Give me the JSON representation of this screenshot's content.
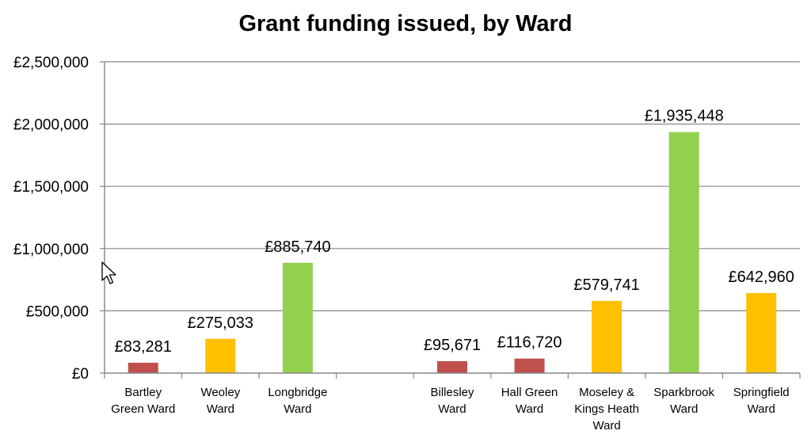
{
  "chart_data": {
    "type": "bar",
    "title": "Grant funding issued, by Ward",
    "categories": [
      [
        "Bartley",
        "Green Ward"
      ],
      [
        "Weoley",
        "Ward"
      ],
      [
        "Longbridge",
        "Ward"
      ],
      [],
      [
        "Billesley",
        "Ward"
      ],
      [
        "Hall Green",
        "Ward"
      ],
      [
        "Moseley &",
        "Kings Heath",
        "Ward"
      ],
      [
        "Sparkbrook",
        "Ward"
      ],
      [
        "Springfield",
        "Ward"
      ]
    ],
    "values": [
      83281,
      275033,
      885740,
      null,
      95671,
      116720,
      579741,
      1935448,
      642960
    ],
    "data_labels": [
      "£83,281",
      "£275,033",
      "£885,740",
      "",
      "£95,671",
      "£116,720",
      "£579,741",
      "£1,935,448",
      "£642,960"
    ],
    "bar_colors": [
      "#c0504d",
      "#ffc000",
      "#92d050",
      "",
      "#c0504d",
      "#c0504d",
      "#ffc000",
      "#92d050",
      "#ffc000"
    ],
    "ylim": [
      0,
      2500000
    ],
    "yticks": [
      0,
      500000,
      1000000,
      1500000,
      2000000,
      2500000
    ],
    "ytick_labels": [
      "£0",
      "£500,000",
      "£1,000,000",
      "£1,500,000",
      "£2,000,000",
      "£2,500,000"
    ],
    "xlabel": "",
    "ylabel": "",
    "grid": true,
    "legend": "none",
    "gridline_color": "#868686",
    "axis_color": "#868686"
  },
  "cursor": {
    "icon": "mouse-pointer-icon"
  }
}
